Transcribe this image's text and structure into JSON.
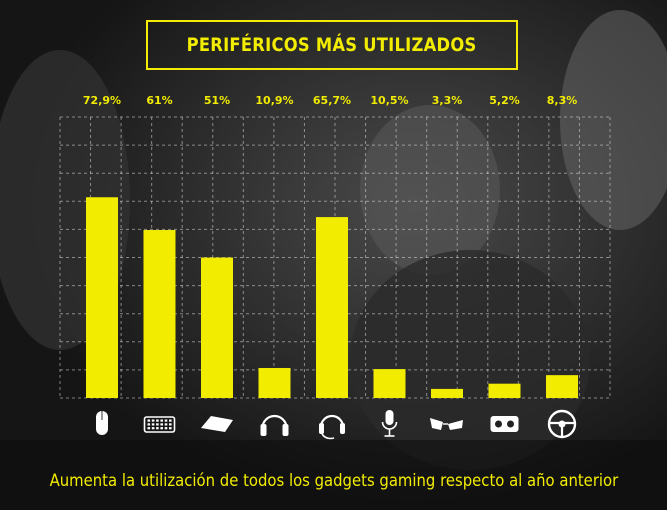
{
  "title": "PERIFÉRICOS MÁS UTILIZADOS",
  "caption": "Aumenta la utilización de todos los gadgets gaming respecto al año anterior",
  "colors": {
    "accent": "#f2ec00",
    "background": "#1b1b1b",
    "grid": "#d9d9d9"
  },
  "chart_data": {
    "type": "bar",
    "categories": [
      "mouse-icon",
      "keyboard-icon",
      "mousepad-icon",
      "headphones-icon",
      "headset-icon",
      "microphone-icon",
      "glasses-icon",
      "vr-headset-icon",
      "steering-wheel-icon"
    ],
    "values": [
      72.9,
      61,
      51,
      10.9,
      65.7,
      10.5,
      3.3,
      5.2,
      8.3
    ],
    "data_labels": [
      "72,9%",
      "61%",
      "51%",
      "10,9%",
      "65,7%",
      "10,5%",
      "3,3%",
      "5,2%",
      "8,3%"
    ],
    "ylim": [
      0,
      100
    ],
    "grid": true,
    "xlabel": "",
    "ylabel": ""
  }
}
